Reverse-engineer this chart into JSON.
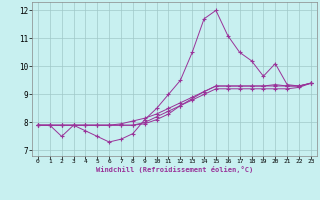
{
  "title": "",
  "xlabel": "Windchill (Refroidissement éolien,°C)",
  "ylabel": "",
  "background_color": "#c8f0f0",
  "line_color": "#993399",
  "xlim": [
    -0.5,
    23.5
  ],
  "ylim": [
    6.8,
    12.3
  ],
  "xticks": [
    0,
    1,
    2,
    3,
    4,
    5,
    6,
    7,
    8,
    9,
    10,
    11,
    12,
    13,
    14,
    15,
    16,
    17,
    18,
    19,
    20,
    21,
    22,
    23
  ],
  "yticks": [
    7,
    8,
    9,
    10,
    11,
    12
  ],
  "series": [
    {
      "x": [
        0,
        1,
        2,
        3,
        4,
        5,
        6,
        7,
        8,
        9,
        10,
        11,
        12,
        13,
        14,
        15,
        16,
        17,
        18,
        19,
        20,
        21,
        22,
        23
      ],
      "y": [
        7.9,
        7.9,
        7.5,
        7.9,
        7.7,
        7.5,
        7.3,
        7.4,
        7.6,
        8.1,
        8.5,
        9.0,
        9.5,
        10.5,
        11.7,
        12.0,
        11.1,
        10.5,
        10.2,
        9.65,
        10.1,
        9.35,
        9.3,
        9.4
      ]
    },
    {
      "x": [
        0,
        1,
        2,
        3,
        4,
        5,
        6,
        7,
        8,
        9,
        10,
        11,
        12,
        13,
        14,
        15,
        16,
        17,
        18,
        19,
        20,
        21,
        22,
        23
      ],
      "y": [
        7.9,
        7.9,
        7.9,
        7.9,
        7.9,
        7.9,
        7.9,
        7.9,
        7.9,
        8.0,
        8.2,
        8.4,
        8.6,
        8.8,
        9.0,
        9.2,
        9.2,
        9.2,
        9.2,
        9.2,
        9.2,
        9.2,
        9.25,
        9.4
      ]
    },
    {
      "x": [
        0,
        1,
        2,
        3,
        4,
        5,
        6,
        7,
        8,
        9,
        10,
        11,
        12,
        13,
        14,
        15,
        16,
        17,
        18,
        19,
        20,
        21,
        22,
        23
      ],
      "y": [
        7.9,
        7.9,
        7.9,
        7.9,
        7.9,
        7.9,
        7.9,
        7.95,
        8.05,
        8.15,
        8.3,
        8.5,
        8.7,
        8.9,
        9.1,
        9.3,
        9.3,
        9.3,
        9.3,
        9.3,
        9.3,
        9.3,
        9.3,
        9.4
      ]
    },
    {
      "x": [
        0,
        1,
        2,
        3,
        4,
        5,
        6,
        7,
        8,
        9,
        10,
        11,
        12,
        13,
        14,
        15,
        16,
        17,
        18,
        19,
        20,
        21,
        22,
        23
      ],
      "y": [
        7.9,
        7.9,
        7.9,
        7.9,
        7.9,
        7.9,
        7.9,
        7.9,
        7.9,
        7.95,
        8.1,
        8.3,
        8.6,
        8.85,
        9.1,
        9.3,
        9.3,
        9.3,
        9.3,
        9.3,
        9.35,
        9.3,
        9.3,
        9.4
      ]
    }
  ]
}
